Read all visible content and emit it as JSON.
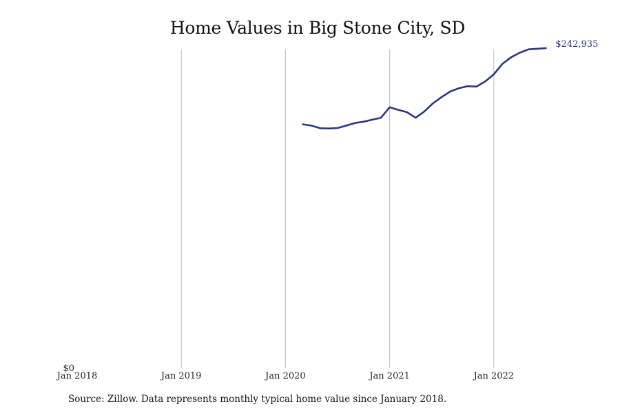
{
  "chart_data": {
    "type": "line",
    "title": "Home Values in Big Stone City, SD",
    "xlabel": "",
    "ylabel": "",
    "x_ticks": [
      "Jan 2018",
      "Jan 2019",
      "Jan 2020",
      "Jan 2021",
      "Jan 2022"
    ],
    "y_ticks": [
      "$0"
    ],
    "ylim": [
      0,
      245000
    ],
    "grid": "vertical",
    "legend": "none",
    "end_label": "$242,935",
    "line_color": "#33337f",
    "series": [
      {
        "x": [
          "2020-03",
          "2020-04",
          "2020-05",
          "2020-06",
          "2020-07",
          "2020-08",
          "2020-09",
          "2020-10",
          "2020-11",
          "2020-12",
          "2021-01",
          "2021-02",
          "2021-03",
          "2021-04",
          "2021-05",
          "2021-06",
          "2021-07",
          "2021-08",
          "2021-09",
          "2021-10",
          "2021-11",
          "2021-12",
          "2022-01",
          "2022-02",
          "2022-03",
          "2022-04",
          "2022-05",
          "2022-06",
          "2022-07"
        ],
        "values": [
          185000,
          184000,
          182000,
          181800,
          182200,
          184000,
          186000,
          187000,
          188500,
          190000,
          198000,
          196000,
          194200,
          190000,
          194800,
          201000,
          205800,
          210000,
          212500,
          214000,
          213700,
          217500,
          223000,
          231000,
          236000,
          239500,
          242000,
          242500,
          242935
        ]
      }
    ]
  },
  "source_note": "Source: Zillow. Data represents monthly typical home value since January 2018."
}
